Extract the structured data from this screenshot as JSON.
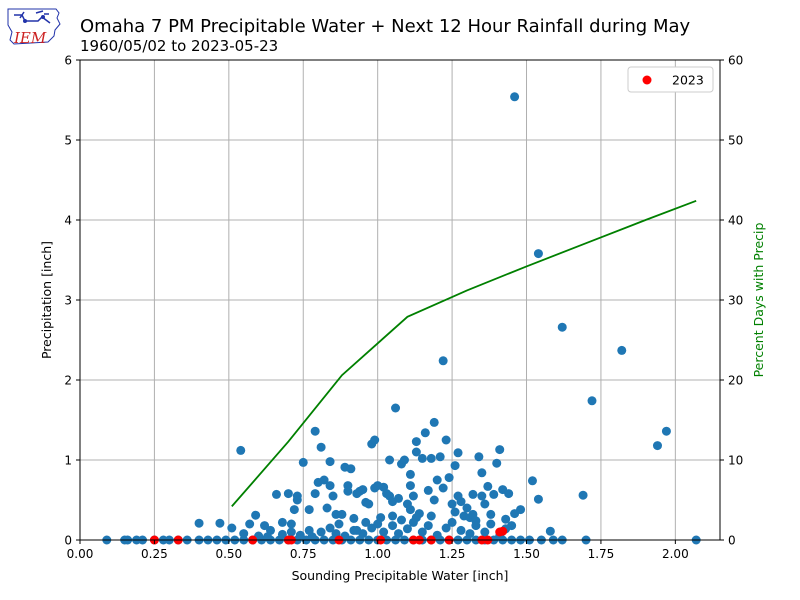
{
  "header": {
    "logo_text": "IEM",
    "title": "Omaha 7 PM Precipitable Water + Next 12 Hour Rainfall during May",
    "subtitle": "1960/05/02 to 2023-05-23"
  },
  "colors": {
    "points": "#1f77b4",
    "highlight": "#ff0000",
    "line": "#008000",
    "grid": "#b0b0b0",
    "logo_red": "#cc2222",
    "logo_blue": "#2233aa"
  },
  "chart_data": {
    "type": "scatter",
    "xlabel": "Sounding Precipitable Water [inch]",
    "ylabel": "Precipitation [inch]",
    "y2label": "Percent Days with Precip",
    "xlim": [
      0.0,
      2.15
    ],
    "ylim": [
      0,
      6
    ],
    "y2lim": [
      0,
      60
    ],
    "xticks": [
      "0.00",
      "0.25",
      "0.50",
      "0.75",
      "1.00",
      "1.25",
      "1.50",
      "1.75",
      "2.00"
    ],
    "yticks": [
      "0",
      "1",
      "2",
      "3",
      "4",
      "5",
      "6"
    ],
    "y2ticks": [
      "0",
      "10",
      "20",
      "30",
      "40",
      "50",
      "60"
    ],
    "grid": true,
    "legend_position": "top-right",
    "legend": [
      "2023"
    ],
    "scatter_all": [
      [
        0.09,
        0
      ],
      [
        0.15,
        0
      ],
      [
        0.16,
        0
      ],
      [
        0.19,
        0
      ],
      [
        0.21,
        0
      ],
      [
        0.25,
        0
      ],
      [
        0.28,
        0
      ],
      [
        0.3,
        0
      ],
      [
        0.33,
        0
      ],
      [
        0.36,
        0
      ],
      [
        0.4,
        0
      ],
      [
        0.43,
        0
      ],
      [
        0.46,
        0
      ],
      [
        0.49,
        0
      ],
      [
        0.52,
        0
      ],
      [
        0.55,
        0
      ],
      [
        0.58,
        0
      ],
      [
        0.61,
        0
      ],
      [
        0.64,
        0
      ],
      [
        0.67,
        0
      ],
      [
        0.7,
        0
      ],
      [
        0.73,
        0
      ],
      [
        0.76,
        0
      ],
      [
        0.79,
        0
      ],
      [
        0.82,
        0
      ],
      [
        0.85,
        0
      ],
      [
        0.88,
        0
      ],
      [
        0.91,
        0
      ],
      [
        0.94,
        0
      ],
      [
        0.97,
        0
      ],
      [
        1.0,
        0
      ],
      [
        1.03,
        0
      ],
      [
        1.06,
        0
      ],
      [
        1.09,
        0
      ],
      [
        1.12,
        0
      ],
      [
        1.15,
        0
      ],
      [
        1.18,
        0
      ],
      [
        1.21,
        0
      ],
      [
        1.24,
        0
      ],
      [
        1.27,
        0
      ],
      [
        1.3,
        0
      ],
      [
        1.33,
        0
      ],
      [
        1.36,
        0
      ],
      [
        1.39,
        0
      ],
      [
        1.42,
        0
      ],
      [
        1.45,
        0
      ],
      [
        1.48,
        0
      ],
      [
        1.51,
        0
      ],
      [
        1.55,
        0
      ],
      [
        1.59,
        0
      ],
      [
        1.62,
        0
      ],
      [
        1.7,
        0
      ],
      [
        2.07,
        0
      ],
      [
        0.4,
        0.21
      ],
      [
        0.47,
        0.21
      ],
      [
        0.51,
        0.15
      ],
      [
        0.55,
        0.08
      ],
      [
        0.57,
        0.2
      ],
      [
        0.59,
        0.31
      ],
      [
        0.62,
        0.18
      ],
      [
        0.64,
        0.12
      ],
      [
        0.66,
        0.57
      ],
      [
        0.68,
        0.22
      ],
      [
        0.7,
        0.58
      ],
      [
        0.71,
        0.2
      ],
      [
        0.72,
        0.38
      ],
      [
        0.73,
        0.5
      ],
      [
        0.73,
        0.55
      ],
      [
        0.75,
        0.97
      ],
      [
        0.77,
        0.38
      ],
      [
        0.77,
        0.12
      ],
      [
        0.79,
        1.36
      ],
      [
        0.79,
        0.58
      ],
      [
        0.8,
        0.72
      ],
      [
        0.81,
        1.16
      ],
      [
        0.82,
        0.75
      ],
      [
        0.83,
        0.4
      ],
      [
        0.84,
        0.98
      ],
      [
        0.84,
        0.68
      ],
      [
        0.85,
        0.55
      ],
      [
        0.86,
        0.32
      ],
      [
        0.87,
        0.2
      ],
      [
        0.88,
        0.32
      ],
      [
        0.89,
        0.91
      ],
      [
        0.9,
        0.61
      ],
      [
        0.9,
        0.68
      ],
      [
        0.91,
        0.89
      ],
      [
        0.92,
        0.27
      ],
      [
        0.93,
        0.58
      ],
      [
        0.94,
        0.61
      ],
      [
        0.95,
        0.63
      ],
      [
        0.96,
        0.47
      ],
      [
        0.97,
        0.45
      ],
      [
        0.98,
        1.2
      ],
      [
        0.99,
        1.25
      ],
      [
        0.99,
        0.65
      ],
      [
        1.0,
        0.68
      ],
      [
        1.01,
        0.28
      ],
      [
        1.02,
        0.66
      ],
      [
        1.03,
        0.58
      ],
      [
        1.04,
        0.55
      ],
      [
        1.04,
        1.0
      ],
      [
        1.05,
        0.48
      ],
      [
        1.06,
        1.65
      ],
      [
        1.07,
        0.52
      ],
      [
        1.08,
        0.95
      ],
      [
        1.09,
        1.0
      ],
      [
        1.1,
        0.45
      ],
      [
        1.11,
        0.82
      ],
      [
        1.11,
        0.68
      ],
      [
        1.12,
        0.55
      ],
      [
        1.13,
        1.23
      ],
      [
        1.13,
        1.1
      ],
      [
        1.14,
        0.33
      ],
      [
        1.15,
        1.02
      ],
      [
        1.16,
        1.34
      ],
      [
        1.17,
        0.62
      ],
      [
        1.18,
        1.02
      ],
      [
        1.19,
        1.47
      ],
      [
        1.19,
        0.5
      ],
      [
        1.2,
        0.75
      ],
      [
        1.21,
        1.04
      ],
      [
        1.22,
        2.24
      ],
      [
        1.22,
        0.65
      ],
      [
        1.23,
        1.25
      ],
      [
        1.24,
        0.78
      ],
      [
        1.25,
        0.45
      ],
      [
        1.26,
        0.93
      ],
      [
        1.27,
        1.09
      ],
      [
        1.27,
        0.55
      ],
      [
        1.28,
        0.48
      ],
      [
        1.29,
        0.3
      ],
      [
        1.3,
        0.4
      ],
      [
        1.31,
        0.28
      ],
      [
        1.32,
        0.57
      ],
      [
        1.33,
        0.24
      ],
      [
        1.34,
        1.04
      ],
      [
        1.35,
        0.84
      ],
      [
        1.35,
        0.55
      ],
      [
        1.36,
        0.45
      ],
      [
        1.37,
        0.67
      ],
      [
        1.38,
        0.32
      ],
      [
        1.39,
        0.57
      ],
      [
        1.4,
        0.96
      ],
      [
        1.41,
        1.13
      ],
      [
        1.42,
        0.63
      ],
      [
        1.43,
        0.26
      ],
      [
        1.44,
        0.58
      ],
      [
        1.45,
        0.18
      ],
      [
        1.46,
        5.54
      ],
      [
        1.46,
        0.33
      ],
      [
        1.48,
        0.38
      ],
      [
        1.52,
        0.74
      ],
      [
        1.54,
        0.51
      ],
      [
        1.54,
        3.58
      ],
      [
        1.58,
        0.11
      ],
      [
        1.62,
        2.66
      ],
      [
        1.69,
        0.56
      ],
      [
        1.72,
        1.74
      ],
      [
        1.82,
        2.37
      ],
      [
        1.94,
        1.18
      ],
      [
        1.97,
        1.36
      ],
      [
        0.54,
        1.12
      ],
      [
        0.6,
        0.05
      ],
      [
        0.63,
        0.04
      ],
      [
        0.68,
        0.07
      ],
      [
        0.71,
        0.1
      ],
      [
        0.74,
        0.06
      ],
      [
        0.78,
        0.04
      ],
      [
        0.81,
        0.1
      ],
      [
        0.86,
        0.08
      ],
      [
        0.89,
        0.05
      ],
      [
        0.92,
        0.12
      ],
      [
        0.95,
        0.08
      ],
      [
        0.98,
        0.15
      ],
      [
        1.0,
        0.2
      ],
      [
        1.02,
        0.1
      ],
      [
        1.05,
        0.18
      ],
      [
        1.07,
        0.08
      ],
      [
        1.1,
        0.14
      ],
      [
        1.12,
        0.22
      ],
      [
        1.15,
        0.1
      ],
      [
        1.17,
        0.18
      ],
      [
        1.2,
        0.06
      ],
      [
        1.23,
        0.15
      ],
      [
        1.25,
        0.22
      ],
      [
        1.28,
        0.12
      ],
      [
        1.31,
        0.08
      ],
      [
        1.33,
        0.18
      ],
      [
        1.36,
        0.1
      ],
      [
        1.38,
        0.2
      ],
      [
        1.41,
        0.05
      ],
      [
        1.43,
        0.14
      ],
      [
        1.05,
        0.3
      ],
      [
        1.08,
        0.25
      ],
      [
        1.13,
        0.28
      ],
      [
        1.18,
        0.3
      ],
      [
        1.26,
        0.35
      ],
      [
        1.32,
        0.32
      ],
      [
        0.96,
        0.22
      ],
      [
        0.93,
        0.12
      ],
      [
        0.84,
        0.15
      ],
      [
        1.11,
        0.38
      ]
    ],
    "scatter_2023": [
      [
        0.25,
        0
      ],
      [
        0.33,
        0
      ],
      [
        0.58,
        0
      ],
      [
        0.7,
        0
      ],
      [
        0.71,
        0
      ],
      [
        0.87,
        0
      ],
      [
        1.01,
        0
      ],
      [
        1.12,
        0
      ],
      [
        1.14,
        0
      ],
      [
        1.18,
        0
      ],
      [
        1.24,
        0
      ],
      [
        1.35,
        0
      ],
      [
        1.37,
        0
      ],
      [
        1.41,
        0.1
      ],
      [
        1.42,
        0.11
      ]
    ],
    "line_series": {
      "name": "Percent Days with Precip",
      "x": [
        0.51,
        0.7,
        0.88,
        1.1,
        1.3,
        1.5,
        1.7,
        1.9,
        2.07
      ],
      "y": [
        4.2,
        12.3,
        20.6,
        27.9,
        31.2,
        34.2,
        37.1,
        40.0,
        42.4
      ]
    }
  }
}
